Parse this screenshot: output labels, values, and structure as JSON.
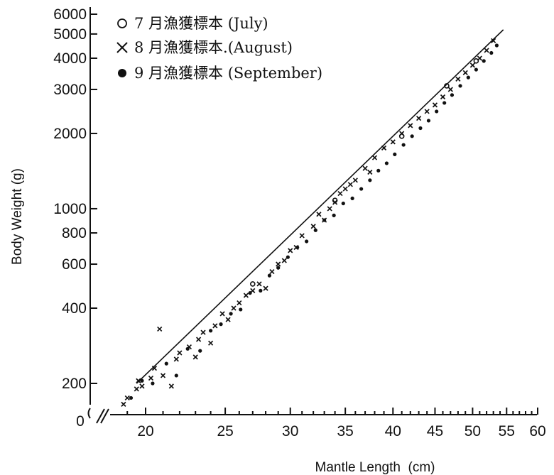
{
  "chart_data": {
    "type": "scatter",
    "xlabel": "Mantle Length  (cm)",
    "ylabel": "Body Weight (g)",
    "xlim": [
      17,
      60
    ],
    "ylim": [
      150,
      6000
    ],
    "y_scale": "log",
    "x_scale": "log",
    "x_ticks": [
      "20",
      "25",
      "30",
      "35",
      "40",
      "45",
      "50",
      "55",
      "60"
    ],
    "x_tick_values": [
      20,
      25,
      30,
      35,
      40,
      45,
      50,
      55,
      60
    ],
    "y_ticks": [
      "200",
      "400",
      "600",
      "800",
      "1000",
      "2000",
      "3000",
      "4000",
      "5000",
      "6000"
    ],
    "y_tick_values": [
      200,
      400,
      600,
      800,
      1000,
      2000,
      3000,
      4000,
      5000,
      6000
    ],
    "origin_label": "0",
    "grid": false,
    "legend_position": "top-left",
    "legend": [
      {
        "symbol": "circle",
        "label": "7 月漁獲標本 (July)"
      },
      {
        "symbol": "cross",
        "label": "8 月漁獲標本.(August)"
      },
      {
        "symbol": "dot",
        "label": "9 月漁獲標本 (September)"
      }
    ],
    "fit_line": {
      "x": [
        19.5,
        54.5
      ],
      "y": [
        200,
        5200
      ]
    },
    "series": [
      {
        "name": "7 月漁獲標本 (July)",
        "symbol": "circle",
        "x": [
          27.0,
          34.0,
          41.0,
          46.5,
          50.5
        ],
        "y": [
          500,
          1080,
          1950,
          3100,
          3900
        ]
      },
      {
        "name": "8 月漁獲標本.(August)",
        "symbol": "cross",
        "x": [
          18.8,
          19.0,
          19.5,
          19.6,
          19.8,
          20.3,
          20.5,
          20.8,
          21.0,
          21.5,
          21.8,
          22.0,
          22.6,
          23.0,
          23.2,
          23.5,
          24.0,
          24.3,
          24.8,
          25.2,
          25.6,
          26.0,
          26.5,
          27.0,
          27.5,
          28.0,
          28.5,
          29.0,
          29.5,
          30.0,
          30.5,
          31.0,
          32.0,
          32.5,
          33.0,
          33.5,
          34.0,
          34.5,
          35.0,
          35.5,
          36.0,
          37.0,
          37.5,
          38.0,
          39.0,
          40.0,
          41.0,
          42.0,
          43.0,
          44.0,
          45.0,
          46.0,
          47.0,
          48.0,
          49.0,
          50.0,
          51.0,
          52.0,
          53.0
        ],
        "y": [
          165,
          175,
          190,
          205,
          195,
          210,
          230,
          330,
          215,
          195,
          250,
          265,
          280,
          255,
          300,
          320,
          290,
          340,
          380,
          360,
          400,
          420,
          450,
          470,
          500,
          480,
          560,
          600,
          620,
          680,
          700,
          780,
          850,
          950,
          900,
          1000,
          1060,
          1150,
          1200,
          1250,
          1300,
          1450,
          1400,
          1600,
          1750,
          1850,
          2000,
          2150,
          2300,
          2450,
          2600,
          2800,
          3000,
          3300,
          3500,
          3750,
          4000,
          4300,
          4700
        ]
      },
      {
        "name": "9 月漁獲標本 (September)",
        "symbol": "dot",
        "x": [
          19.2,
          19.8,
          20.4,
          21.2,
          21.8,
          22.5,
          23.3,
          24.0,
          24.7,
          25.4,
          26.1,
          26.8,
          27.6,
          28.3,
          29.0,
          29.8,
          30.6,
          31.4,
          32.2,
          33.0,
          33.9,
          34.8,
          35.7,
          36.6,
          37.5,
          38.4,
          39.3,
          40.2,
          41.2,
          42.2,
          43.2,
          44.2,
          45.2,
          46.2,
          47.2,
          48.3,
          49.4,
          50.5,
          51.6,
          52.7,
          53.5
        ],
        "y": [
          175,
          205,
          200,
          240,
          215,
          275,
          270,
          325,
          345,
          380,
          395,
          460,
          470,
          540,
          580,
          640,
          700,
          740,
          820,
          900,
          940,
          1050,
          1100,
          1200,
          1300,
          1420,
          1520,
          1650,
          1800,
          1950,
          2100,
          2250,
          2450,
          2650,
          2850,
          3100,
          3350,
          3600,
          3900,
          4200,
          4500
        ]
      }
    ]
  }
}
